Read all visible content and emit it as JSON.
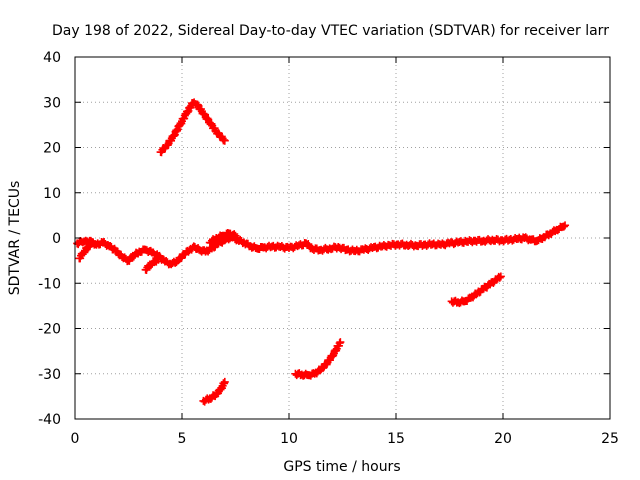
{
  "chart_data": {
    "type": "scatter",
    "title": "Day 198 of 2022, Sidereal Day-to-day VTEC variation (SDTVAR) for receiver larr",
    "xlabel": "GPS time / hours",
    "ylabel": "SDTVAR / TECUs",
    "xlim": [
      0,
      25
    ],
    "ylim": [
      -40,
      40
    ],
    "xticks": [
      0,
      5,
      10,
      15,
      20,
      25
    ],
    "yticks": [
      -40,
      -30,
      -20,
      -10,
      0,
      10,
      20,
      30,
      40
    ],
    "grid": true,
    "marker": "+",
    "color": "#ff0000",
    "series": [
      {
        "name": "main-trace",
        "points": [
          [
            0.1,
            -1.2
          ],
          [
            0.3,
            -0.8
          ],
          [
            0.5,
            -0.6
          ],
          [
            0.8,
            -0.9
          ],
          [
            1.0,
            -1.5
          ],
          [
            1.3,
            -1.0
          ],
          [
            1.6,
            -1.8
          ],
          [
            1.9,
            -2.8
          ],
          [
            2.2,
            -4.2
          ],
          [
            2.5,
            -5.0
          ],
          [
            2.7,
            -4.0
          ],
          [
            3.0,
            -3.0
          ],
          [
            3.3,
            -2.6
          ],
          [
            3.6,
            -3.2
          ],
          [
            3.9,
            -4.0
          ],
          [
            4.2,
            -5.2
          ],
          [
            4.5,
            -5.8
          ],
          [
            4.8,
            -5.0
          ],
          [
            5.1,
            -3.6
          ],
          [
            5.4,
            -2.4
          ],
          [
            5.6,
            -2.0
          ],
          [
            5.8,
            -2.6
          ],
          [
            6.1,
            -3.0
          ],
          [
            6.4,
            -2.3
          ],
          [
            6.7,
            -1.2
          ],
          [
            7.0,
            -0.5
          ],
          [
            7.3,
            0.2
          ],
          [
            7.6,
            -0.4
          ],
          [
            7.9,
            -1.0
          ],
          [
            8.2,
            -1.8
          ],
          [
            8.5,
            -2.3
          ],
          [
            8.8,
            -2.1
          ],
          [
            9.2,
            -1.9
          ],
          [
            9.6,
            -2.0
          ],
          [
            10.0,
            -2.2
          ],
          [
            10.4,
            -1.8
          ],
          [
            10.8,
            -1.2
          ],
          [
            11.1,
            -2.4
          ],
          [
            11.5,
            -2.6
          ],
          [
            11.9,
            -2.3
          ],
          [
            12.3,
            -2.0
          ],
          [
            12.7,
            -2.6
          ],
          [
            13.1,
            -2.9
          ],
          [
            13.5,
            -2.6
          ],
          [
            13.9,
            -2.2
          ],
          [
            14.3,
            -1.9
          ],
          [
            14.7,
            -1.6
          ],
          [
            15.1,
            -1.4
          ],
          [
            15.5,
            -1.5
          ],
          [
            15.9,
            -1.6
          ],
          [
            16.3,
            -1.5
          ],
          [
            16.7,
            -1.4
          ],
          [
            17.1,
            -1.5
          ],
          [
            17.5,
            -1.2
          ],
          [
            17.9,
            -1.0
          ],
          [
            18.3,
            -0.8
          ],
          [
            18.7,
            -0.6
          ],
          [
            19.1,
            -0.6
          ],
          [
            19.5,
            -0.4
          ],
          [
            19.9,
            -0.5
          ],
          [
            20.3,
            -0.4
          ],
          [
            20.7,
            -0.2
          ],
          [
            21.0,
            0.0
          ],
          [
            21.3,
            -0.4
          ],
          [
            21.6,
            -0.6
          ],
          [
            21.9,
            0.2
          ],
          [
            22.2,
            1.0
          ],
          [
            22.5,
            1.8
          ],
          [
            22.8,
            2.5
          ],
          [
            22.9,
            2.8
          ]
        ]
      },
      {
        "name": "start-dip",
        "points": [
          [
            0.2,
            -4.5
          ],
          [
            0.4,
            -3.2
          ],
          [
            0.6,
            -2.0
          ],
          [
            0.8,
            -1.2
          ]
        ]
      },
      {
        "name": "dip-near-3h",
        "points": [
          [
            3.3,
            -7.0
          ],
          [
            3.5,
            -6.0
          ],
          [
            3.7,
            -5.2
          ],
          [
            3.9,
            -4.8
          ]
        ]
      },
      {
        "name": "branch-near-7h",
        "points": [
          [
            6.3,
            -1.0
          ],
          [
            6.6,
            0.0
          ],
          [
            6.9,
            0.5
          ],
          [
            7.2,
            1.0
          ],
          [
            7.5,
            0.5
          ]
        ]
      },
      {
        "name": "upper-arc",
        "points": [
          [
            4.0,
            19.0
          ],
          [
            4.3,
            20.5
          ],
          [
            4.6,
            22.5
          ],
          [
            4.9,
            25.0
          ],
          [
            5.2,
            27.5
          ],
          [
            5.5,
            29.8
          ],
          [
            5.7,
            29.5
          ],
          [
            6.0,
            27.5
          ],
          [
            6.3,
            25.5
          ],
          [
            6.6,
            23.5
          ],
          [
            6.9,
            22.0
          ],
          [
            7.0,
            21.5
          ]
        ]
      },
      {
        "name": "low-segment-6h",
        "points": [
          [
            6.0,
            -36.0
          ],
          [
            6.3,
            -35.5
          ],
          [
            6.6,
            -34.5
          ],
          [
            6.8,
            -33.5
          ],
          [
            7.0,
            -31.8
          ]
        ]
      },
      {
        "name": "low-segment-11h",
        "points": [
          [
            10.3,
            -30.0
          ],
          [
            10.6,
            -30.2
          ],
          [
            10.9,
            -30.3
          ],
          [
            11.2,
            -30.0
          ],
          [
            11.5,
            -29.0
          ],
          [
            11.8,
            -27.5
          ],
          [
            12.1,
            -25.5
          ],
          [
            12.4,
            -23.0
          ]
        ]
      },
      {
        "name": "segment-18h",
        "points": [
          [
            17.6,
            -14.0
          ],
          [
            17.9,
            -14.2
          ],
          [
            18.2,
            -14.0
          ],
          [
            18.5,
            -13.2
          ],
          [
            18.8,
            -12.2
          ],
          [
            19.1,
            -11.2
          ],
          [
            19.4,
            -10.2
          ],
          [
            19.7,
            -9.2
          ],
          [
            19.9,
            -8.5
          ]
        ]
      }
    ]
  }
}
